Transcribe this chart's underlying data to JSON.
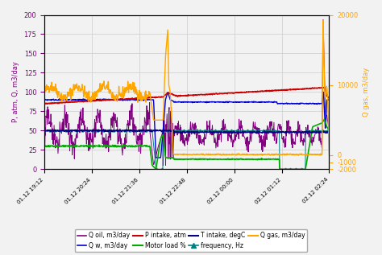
{
  "ylabel_left": "P, atm, Q, m3/day",
  "ylabel_right": "Q gas, m3/day",
  "ylim_left": [
    0,
    200
  ],
  "ylim_right": [
    -2000,
    20000
  ],
  "yticks_left": [
    0,
    25,
    50,
    75,
    100,
    125,
    150,
    175,
    200
  ],
  "yticks_right": [
    -2000,
    -1000,
    0,
    10000,
    20000
  ],
  "background_color": "#f0f0f0",
  "grid_color": "#cccccc",
  "xtick_labels": [
    "01.12 19:12",
    "01.12 20:24",
    "01.12 21:36",
    "01.12 22:48",
    "02.12 00:00",
    "02.12 01:12",
    "02.12 02:24"
  ],
  "colors": {
    "q_oil": "#800080",
    "q_w": "#0000cc",
    "p_intake": "#cc0000",
    "motor": "#00aa00",
    "t_intake": "#000080",
    "freq": "#008080",
    "q_gas": "#ffa500"
  }
}
